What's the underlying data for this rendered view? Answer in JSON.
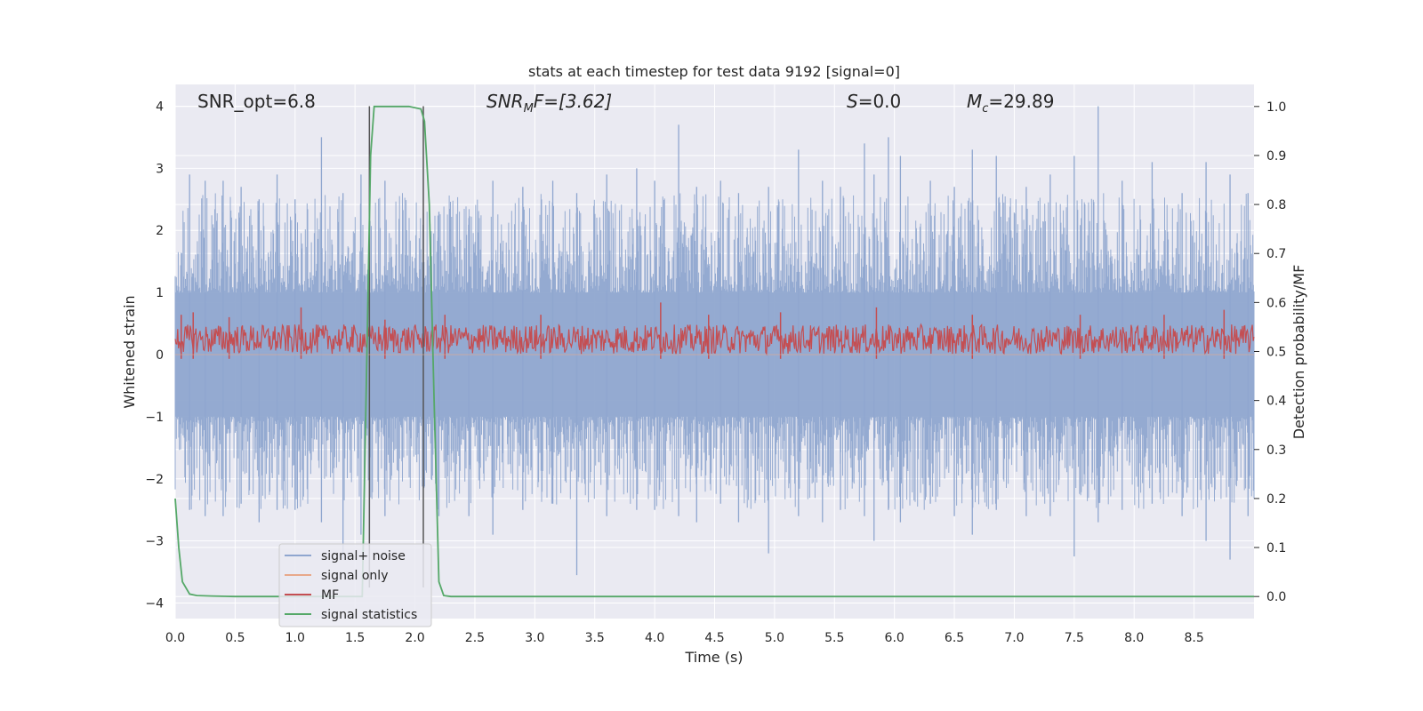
{
  "chart_data": {
    "type": "line",
    "title": "stats at each timestep for test data 9192 [signal=0]",
    "xlabel": "Time (s)",
    "ylabel": "Whitened strain",
    "y2label": "Detection probability/MF",
    "xlim": [
      0.0,
      9.0
    ],
    "ylim": [
      -4.25,
      4.35
    ],
    "y2lim": [
      -0.045,
      1.045
    ],
    "grid": true,
    "legend_position": "lower-left",
    "x_ticks": [
      "0.0",
      "0.5",
      "1.0",
      "1.5",
      "2.0",
      "2.5",
      "3.0",
      "3.5",
      "4.0",
      "4.5",
      "5.0",
      "5.5",
      "6.0",
      "6.5",
      "7.0",
      "7.5",
      "8.0",
      "8.5"
    ],
    "x_tick_values": [
      0.0,
      0.5,
      1.0,
      1.5,
      2.0,
      2.5,
      3.0,
      3.5,
      4.0,
      4.5,
      5.0,
      5.5,
      6.0,
      6.5,
      7.0,
      7.5,
      8.0,
      8.5
    ],
    "y_ticks": [
      "4",
      "3",
      "2",
      "1",
      "0",
      "−1",
      "−2",
      "−3",
      "−4"
    ],
    "y_tick_values": [
      4,
      3,
      2,
      1,
      0,
      -1,
      -2,
      -3,
      -4
    ],
    "y2_ticks": [
      "1.0",
      "0.9",
      "0.8",
      "0.7",
      "0.6",
      "0.5",
      "0.4",
      "0.3",
      "0.2",
      "0.1",
      "0.0"
    ],
    "y2_tick_values": [
      1.0,
      0.9,
      0.8,
      0.7,
      0.6,
      0.5,
      0.4,
      0.3,
      0.2,
      0.1,
      0.0
    ],
    "annotations": {
      "snr_opt": "SNR_opt=6.8",
      "snr_mf_main": "SNR",
      "snr_mf_sub": "M",
      "snr_mf_rest": "F=[3.62]",
      "s_main": "S",
      "s_rest": "=0.0",
      "mc_main": "M",
      "mc_sub": "c",
      "mc_rest": "=29.89"
    },
    "vlines_x": [
      1.62,
      2.07
    ],
    "series": [
      {
        "name": "signal+ noise",
        "color": "#8fa6cf",
        "axis": "left",
        "envelope_peaks": {
          "x": [
            0.12,
            0.25,
            0.4,
            0.55,
            0.7,
            0.85,
            1.0,
            1.22,
            1.4,
            1.55,
            1.75,
            2.2,
            2.45,
            2.65,
            2.9,
            3.15,
            3.35,
            3.6,
            3.85,
            4.0,
            4.2,
            4.35,
            4.55,
            4.7,
            4.95,
            5.2,
            5.4,
            5.55,
            5.75,
            5.83,
            5.95,
            6.05,
            6.3,
            6.5,
            6.65,
            6.85,
            7.1,
            7.3,
            7.5,
            7.7,
            7.9,
            8.15,
            8.4,
            8.6,
            8.8,
            8.95
          ],
          "upper": [
            2.9,
            2.8,
            2.8,
            2.7,
            2.5,
            2.9,
            2.5,
            3.5,
            2.6,
            2.9,
            2.8,
            2.3,
            2.2,
            2.8,
            2.7,
            2.8,
            2.6,
            2.9,
            3.0,
            2.8,
            3.7,
            2.7,
            2.8,
            2.6,
            2.7,
            3.3,
            2.8,
            2.7,
            3.4,
            2.9,
            3.5,
            3.2,
            2.8,
            2.7,
            3.3,
            3.2,
            2.7,
            2.9,
            3.2,
            4.0,
            2.8,
            3.1,
            2.6,
            3.1,
            2.9,
            2.6
          ],
          "lower": [
            -2.5,
            -2.6,
            -2.6,
            -2.4,
            -2.7,
            -2.5,
            -2.5,
            -2.7,
            -3.3,
            -2.9,
            -2.6,
            -2.6,
            -2.6,
            -2.9,
            -2.5,
            -2.4,
            -3.55,
            -2.6,
            -2.5,
            -2.5,
            -2.6,
            -2.7,
            -2.4,
            -2.7,
            -3.2,
            -2.6,
            -2.7,
            -2.5,
            -2.6,
            -3.0,
            -2.5,
            -2.7,
            -2.4,
            -2.6,
            -2.9,
            -2.5,
            -2.6,
            -2.6,
            -3.25,
            -2.7,
            -2.5,
            -2.4,
            -2.6,
            -3.0,
            -3.3,
            -2.6
          ]
        }
      },
      {
        "name": "signal only",
        "color": "#e8a88a",
        "axis": "left",
        "values_constant": 0.0
      },
      {
        "name": "MF",
        "color": "#c44e52",
        "axis": "right",
        "range": [
          0.485,
          0.6
        ],
        "peaks": {
          "x": [
            0.05,
            0.15,
            0.45,
            1.05,
            1.75,
            2.25,
            3.05,
            4.05,
            4.45,
            5.05,
            5.85,
            6.65,
            7.55,
            8.25,
            8.75
          ],
          "y": [
            0.575,
            0.58,
            0.57,
            0.59,
            0.565,
            0.575,
            0.575,
            0.6,
            0.575,
            0.58,
            0.59,
            0.575,
            0.575,
            0.575,
            0.585
          ]
        }
      },
      {
        "name": "signal statistics",
        "color": "#55a868",
        "axis": "right",
        "x": [
          0.0,
          0.03,
          0.06,
          0.12,
          0.18,
          0.3,
          0.5,
          0.8,
          1.0,
          1.2,
          1.4,
          1.5,
          1.56,
          1.6,
          1.63,
          1.66,
          1.7,
          1.8,
          1.95,
          2.05,
          2.08,
          2.12,
          2.16,
          2.2,
          2.24,
          2.3,
          2.5,
          3.0,
          4.0,
          5.0,
          6.0,
          7.0,
          8.0,
          9.0
        ],
        "y": [
          0.2,
          0.1,
          0.03,
          0.005,
          0.002,
          0.001,
          0.0,
          0.0,
          0.0,
          0.0,
          0.0,
          0.0,
          0.0,
          0.5,
          0.9,
          1.0,
          1.0,
          1.0,
          1.0,
          0.995,
          0.97,
          0.8,
          0.4,
          0.03,
          0.002,
          0.0,
          0.0,
          0.0,
          0.0,
          0.0,
          0.0,
          0.0,
          0.0,
          0.0
        ]
      }
    ]
  }
}
